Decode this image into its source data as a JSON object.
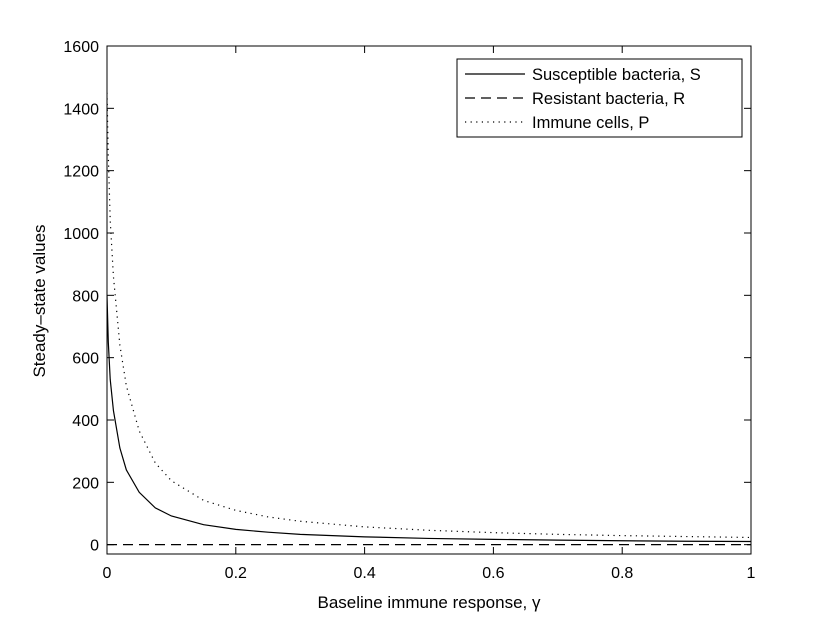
{
  "chart_data": {
    "type": "line",
    "title": "",
    "xlabel": "Baseline immune response, γ",
    "ylabel": "Steady–state values",
    "xlim": [
      0,
      1
    ],
    "ylim": [
      -30,
      1600
    ],
    "x_ticks": [
      0,
      0.2,
      0.4,
      0.6,
      0.8,
      1
    ],
    "x_tick_labels": [
      "0",
      "0.2",
      "0.4",
      "0.6",
      "0.8",
      "1"
    ],
    "y_ticks": [
      0,
      200,
      400,
      600,
      800,
      1000,
      1200,
      1400,
      1600
    ],
    "y_tick_labels": [
      "0",
      "200",
      "400",
      "600",
      "800",
      "1000",
      "1200",
      "1400",
      "1600"
    ],
    "grid": false,
    "legend_position": "top-right",
    "series": [
      {
        "name": "Susceptible bacteria, S",
        "line_style": "solid",
        "color": "#000000",
        "x": [
          0,
          0.002,
          0.005,
          0.01,
          0.02,
          0.03,
          0.05,
          0.075,
          0.1,
          0.15,
          0.2,
          0.25,
          0.3,
          0.4,
          0.5,
          0.6,
          0.7,
          0.8,
          0.9,
          1.0
        ],
        "y": [
          800,
          650,
          530,
          430,
          310,
          240,
          168,
          118,
          92,
          64,
          49,
          40,
          33,
          25,
          20,
          17,
          14.5,
          12.5,
          11,
          10
        ]
      },
      {
        "name": "Resistant bacteria, R",
        "line_style": "dashed",
        "color": "#000000",
        "x": [
          0,
          1
        ],
        "y": [
          0,
          0
        ]
      },
      {
        "name": "Immune cells, P",
        "line_style": "dotted",
        "color": "#000000",
        "x": [
          0,
          0.002,
          0.005,
          0.01,
          0.02,
          0.03,
          0.05,
          0.075,
          0.1,
          0.15,
          0.2,
          0.25,
          0.3,
          0.4,
          0.5,
          0.6,
          0.7,
          0.8,
          0.9,
          1.0
        ],
        "y": [
          1450,
          1250,
          1040,
          860,
          640,
          510,
          365,
          262,
          205,
          142,
          110,
          89,
          75,
          57,
          46,
          38.5,
          33,
          29,
          26,
          23
        ]
      }
    ]
  }
}
